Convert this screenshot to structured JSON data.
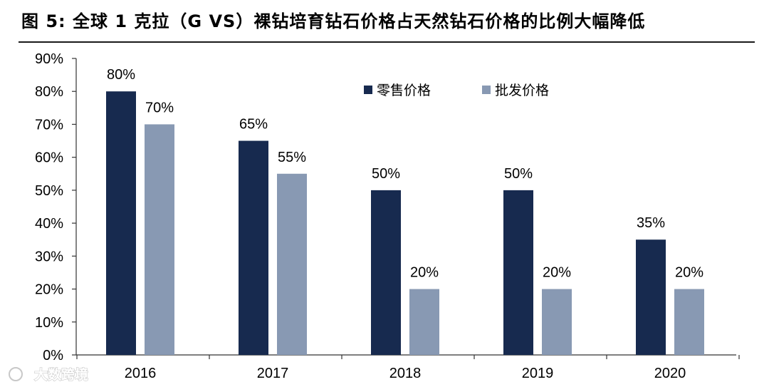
{
  "title": "图 5:  全球 1 克拉（G VS）裸钻培育钻石价格占天然钻石价格的比例大幅降低",
  "watermark": "大数跨境",
  "chart_data": {
    "type": "bar",
    "categories": [
      "2016",
      "2017",
      "2018",
      "2019",
      "2020"
    ],
    "series": [
      {
        "name": "零售价格",
        "values": [
          80,
          65,
          50,
          50,
          35
        ],
        "color": "#172a4f"
      },
      {
        "name": "批发价格",
        "values": [
          70,
          55,
          20,
          20,
          20
        ],
        "color": "#8899b3"
      }
    ],
    "value_suffix": "%",
    "ylim": [
      0,
      90
    ],
    "yticks": [
      0,
      10,
      20,
      30,
      40,
      50,
      60,
      70,
      80,
      90
    ],
    "ytick_labels": [
      "0%",
      "10%",
      "20%",
      "30%",
      "40%",
      "50%",
      "60%",
      "70%",
      "80%",
      "90%"
    ],
    "data_labels": [
      [
        "80%",
        "65%",
        "50%",
        "50%",
        "35%"
      ],
      [
        "70%",
        "55%",
        "20%",
        "20%",
        "20%"
      ]
    ],
    "grid": false,
    "legend_position": "top-right"
  }
}
